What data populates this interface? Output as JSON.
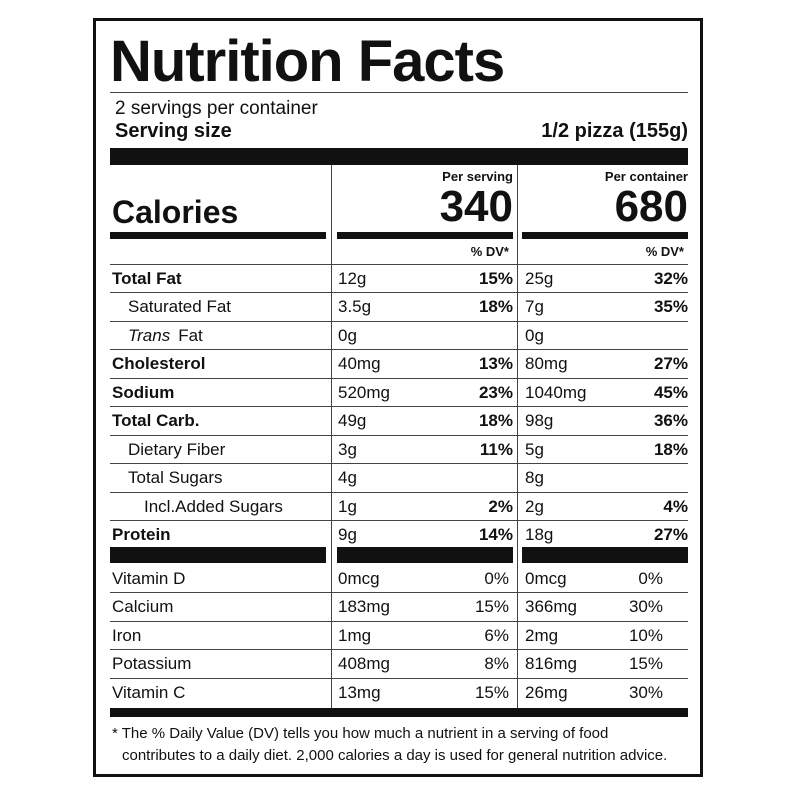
{
  "title": "Nutrition Facts",
  "servings": "2 servings per container",
  "serving_size_label": "Serving size",
  "serving_size": "1/2 pizza (155g)",
  "calories_label": "Calories",
  "columns": [
    {
      "heading": "Per serving",
      "calories": "340",
      "dv_heading": "% DV*"
    },
    {
      "heading": "Per container",
      "calories": "680",
      "dv_heading": "% DV*"
    }
  ],
  "nutrients": [
    {
      "name": "Total Fat",
      "bold": true,
      "indent": 0,
      "amounts": [
        "12g",
        "25g"
      ],
      "dv": [
        "15%",
        "32%"
      ]
    },
    {
      "name": "Saturated Fat",
      "bold": false,
      "indent": 1,
      "amounts": [
        "3.5g",
        "7g"
      ],
      "dv": [
        "18%",
        "35%"
      ]
    },
    {
      "name_italic": "Trans",
      "name": "Fat",
      "bold": false,
      "indent": 1,
      "amounts": [
        "0g",
        "0g"
      ]
    },
    {
      "name": "Cholesterol",
      "bold": true,
      "indent": 0,
      "amounts": [
        "40mg",
        "80mg"
      ],
      "dv": [
        "13%",
        "27%"
      ]
    },
    {
      "name": "Sodium",
      "bold": true,
      "indent": 0,
      "amounts": [
        "520mg",
        "1040mg"
      ],
      "dv": [
        "23%",
        "45%"
      ]
    },
    {
      "name": "Total Carb.",
      "bold": true,
      "indent": 0,
      "amounts": [
        "49g",
        "98g"
      ],
      "dv": [
        "18%",
        "36%"
      ]
    },
    {
      "name": "Dietary Fiber",
      "bold": false,
      "indent": 1,
      "amounts": [
        "3g",
        "5g"
      ],
      "dv": [
        "11%",
        "18%"
      ]
    },
    {
      "name": "Total Sugars",
      "bold": false,
      "indent": 1,
      "amounts": [
        "4g",
        "8g"
      ]
    },
    {
      "name": "Incl.Added Sugars",
      "bold": false,
      "indent": 2,
      "amounts": [
        "1g",
        "2g"
      ],
      "dv": [
        "2%",
        "4%"
      ]
    },
    {
      "name": "Protein",
      "bold": true,
      "indent": 0,
      "amounts": [
        "9g",
        "18g"
      ],
      "dv": [
        "14%",
        "27%"
      ]
    }
  ],
  "vitamins": [
    {
      "name": "Vitamin D",
      "amounts": [
        "0mcg",
        "0mcg"
      ],
      "dv": [
        "0%",
        "0%"
      ]
    },
    {
      "name": "Calcium",
      "amounts": [
        "183mg",
        "366mg"
      ],
      "dv": [
        "15%",
        "30%"
      ]
    },
    {
      "name": "Iron",
      "amounts": [
        "1mg",
        "2mg"
      ],
      "dv": [
        "6%",
        "10%"
      ]
    },
    {
      "name": "Potassium",
      "amounts": [
        "408mg",
        "816mg"
      ],
      "dv": [
        "8%",
        "15%"
      ]
    },
    {
      "name": "Vitamin C",
      "amounts": [
        "13mg",
        "26mg"
      ],
      "dv": [
        "15%",
        "30%"
      ]
    }
  ],
  "footnote": [
    "* The % Daily Value (DV) tells you how much a nutrient in a serving of food",
    "contributes to a daily diet. 2,000 calories a day is used for general nutrition advice."
  ]
}
